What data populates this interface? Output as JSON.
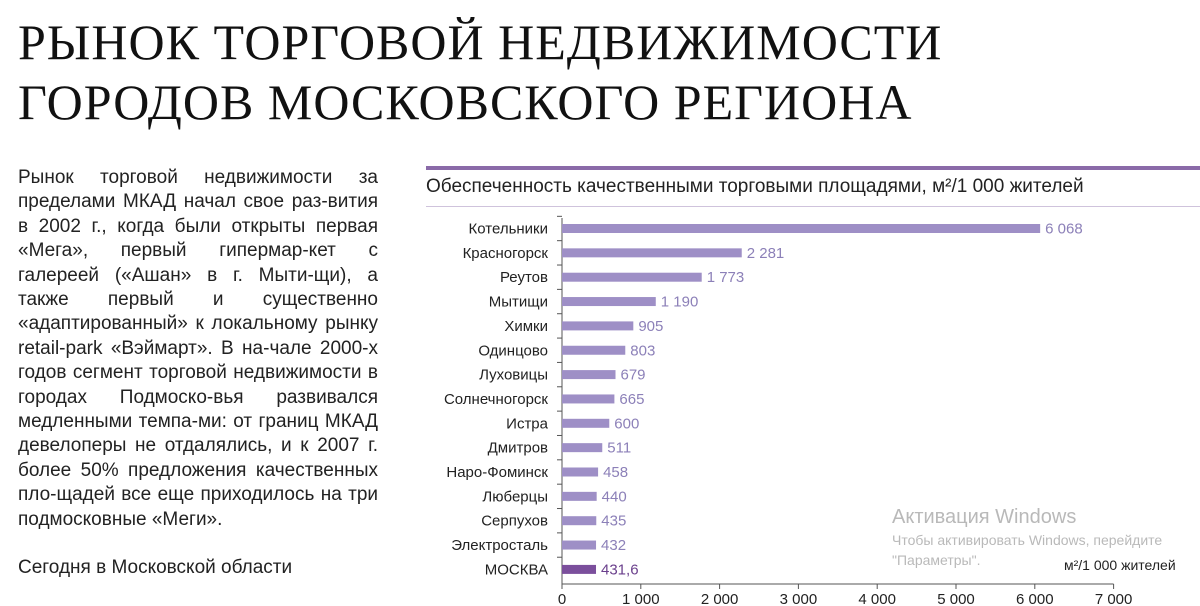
{
  "page_title": "РЫНОК ТОРГОВОЙ НЕДВИЖИМОСТИ\nГОРОДОВ МОСКОВСКОГО РЕГИОНА",
  "body": {
    "paragraph_1": "Рынок торговой недвижимости за пределами МКАД начал свое раз-вития в 2002 г., когда были открыты первая «Мега», первый гипермар-кет с галереей («Ашан» в г. Мыти-щи), а также первый и существенно «адаптированный» к локальному рынку retail-park «Вэймарт». В на-чале 2000-х годов сегмент торговой недвижимости в городах Подмоско-вья развивался медленными темпа-ми: от границ МКАД девелоперы не отдалялись, и к 2007 г. более 50% предложения качественных пло-щадей все еще приходилось на три подмосковные «Меги».",
    "paragraph_2": "Сегодня в Московской области"
  },
  "chart_data": {
    "type": "bar",
    "orientation": "horizontal",
    "title": "Обеспеченность качественными торговыми площадями, м²/1 000 жителей",
    "unit_label": "м²/1 000 жителей",
    "categories": [
      "Котельники",
      "Красногорск",
      "Реутов",
      "Мытищи",
      "Химки",
      "Одинцово",
      "Луховицы",
      "Солнечногорск",
      "Истра",
      "Дмитров",
      "Наро-Фоминск",
      "Люберцы",
      "Серпухов",
      "Электросталь",
      "МОСКВА"
    ],
    "values": [
      6068,
      2281,
      1773,
      1190,
      905,
      803,
      679,
      665,
      600,
      511,
      458,
      440,
      435,
      432,
      431.6
    ],
    "value_labels": [
      "6 068",
      "2 281",
      "1 773",
      "1 190",
      "905",
      "803",
      "679",
      "665",
      "600",
      "511",
      "458",
      "440",
      "435",
      "432",
      "431,6"
    ],
    "highlight_category": "МОСКВА",
    "xlim": [
      0,
      7000
    ],
    "x_ticks": [
      0,
      1000,
      2000,
      3000,
      4000,
      5000,
      6000,
      7000
    ],
    "x_tick_labels": [
      "0",
      "1 000",
      "2 000",
      "3 000",
      "4 000",
      "5 000",
      "6 000",
      "7 000"
    ],
    "colors": {
      "bar": "#9e8fc6",
      "bar_highlight": "#7b4f9c",
      "value_label": "#8c80b8",
      "value_label_highlight": "#6a3f8c",
      "accent_line": "#8a6aa8"
    },
    "grid": false
  },
  "watermark": {
    "title": "Активация Windows",
    "line_1": "Чтобы активировать Windows, перейдите",
    "line_2": "\"Параметры\"."
  }
}
